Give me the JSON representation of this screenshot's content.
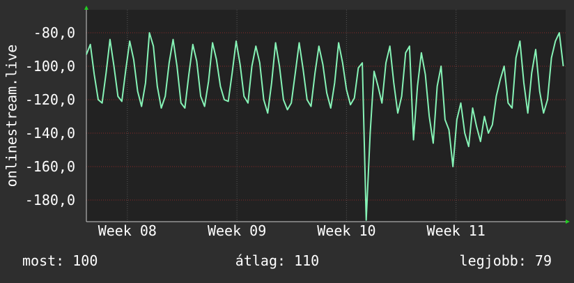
{
  "chart_data": {
    "type": "line",
    "y_label": "onlinestream.live",
    "xlim": [
      0,
      30.4
    ],
    "ylim": [
      -192.9,
      -66.25
    ],
    "yticks": [
      {
        "value": -80,
        "label": "-80,0"
      },
      {
        "value": -100,
        "label": "-100,0"
      },
      {
        "value": -120,
        "label": "-120,0"
      },
      {
        "value": -140,
        "label": "-140,0"
      },
      {
        "value": -160,
        "label": "-160,0"
      },
      {
        "value": -180,
        "label": "-180,0"
      }
    ],
    "xticks": [
      {
        "value": 2.6,
        "label": "Week 08"
      },
      {
        "value": 9.55,
        "label": "Week 09"
      },
      {
        "value": 16.5,
        "label": "Week 10"
      },
      {
        "value": 23.45,
        "label": "Week 11"
      }
    ],
    "grid": true,
    "x": [
      0,
      0.25,
      0.5,
      0.75,
      1,
      1.25,
      1.5,
      1.75,
      2,
      2.25,
      2.5,
      2.75,
      3,
      3.25,
      3.5,
      3.75,
      4,
      4.25,
      4.5,
      4.75,
      5,
      5.25,
      5.5,
      5.75,
      6,
      6.25,
      6.5,
      6.75,
      7,
      7.25,
      7.5,
      7.75,
      8,
      8.25,
      8.5,
      8.75,
      9,
      9.25,
      9.5,
      9.75,
      10,
      10.25,
      10.5,
      10.75,
      11,
      11.25,
      11.5,
      11.75,
      12,
      12.25,
      12.5,
      12.75,
      13,
      13.25,
      13.5,
      13.75,
      14,
      14.25,
      14.5,
      14.75,
      15,
      15.25,
      15.5,
      15.75,
      16,
      16.25,
      16.5,
      16.75,
      17,
      17.25,
      17.5,
      17.75,
      18,
      18.25,
      18.5,
      18.75,
      19,
      19.25,
      19.5,
      19.75,
      20,
      20.25,
      20.5,
      20.75,
      21,
      21.25,
      21.5,
      21.75,
      22,
      22.25,
      22.5,
      22.75,
      23,
      23.25,
      23.5,
      23.75,
      24,
      24.25,
      24.5,
      24.75,
      25,
      25.25,
      25.5,
      25.75,
      26,
      26.25,
      26.5,
      26.75,
      27,
      27.25,
      27.5,
      27.75,
      28,
      28.25,
      28.5,
      28.75,
      29,
      29.25,
      29.5,
      29.75,
      30,
      30.25
    ],
    "series": [
      {
        "name": "onlinestream.live",
        "color": "#86f3b6",
        "values": [
          -93,
          -87,
          -105,
          -120,
          -122,
          -104,
          -84,
          -100,
          -118,
          -121,
          -102,
          -85,
          -96,
          -115,
          -124,
          -110,
          -80,
          -88,
          -112,
          -125,
          -118,
          -98,
          -84,
          -100,
          -122,
          -125,
          -105,
          -87,
          -97,
          -118,
          -124,
          -109,
          -86,
          -96,
          -112,
          -120,
          -121,
          -104,
          -85,
          -99,
          -118,
          -122,
          -100,
          -88,
          -98,
          -120,
          -128,
          -110,
          -86,
          -100,
          -120,
          -126,
          -122,
          -104,
          -86,
          -102,
          -120,
          -124,
          -104,
          -88,
          -99,
          -116,
          -125,
          -110,
          -86,
          -98,
          -114,
          -123,
          -119,
          -101,
          -98,
          -192,
          -140,
          -103,
          -112,
          -122,
          -98,
          -88,
          -110,
          -128,
          -118,
          -92,
          -88,
          -144,
          -112,
          -92,
          -105,
          -130,
          -146,
          -112,
          -100,
          -132,
          -138,
          -160,
          -132,
          -122,
          -140,
          -148,
          -125,
          -136,
          -145,
          -130,
          -140,
          -135,
          -118,
          -108,
          -100,
          -122,
          -125,
          -95,
          -85,
          -110,
          -128,
          -104,
          -90,
          -115,
          -128,
          -120,
          -95,
          -85,
          -80,
          -100
        ]
      }
    ],
    "footer": [
      "most: 100",
      "átlag: 110",
      "legjobb: 79"
    ]
  }
}
